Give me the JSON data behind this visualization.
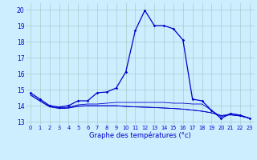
{
  "title": "Graphe des températures (°c)",
  "background_color": "#cceeff",
  "grid_color": "#aacccc",
  "line_color": "#0000cc",
  "xlim": [
    -0.5,
    23.5
  ],
  "ylim": [
    12.8,
    20.4
  ],
  "yticks": [
    13,
    14,
    15,
    16,
    17,
    18,
    19,
    20
  ],
  "xticks": [
    0,
    1,
    2,
    3,
    4,
    5,
    6,
    7,
    8,
    9,
    10,
    11,
    12,
    13,
    14,
    15,
    16,
    17,
    18,
    19,
    20,
    21,
    22,
    23
  ],
  "main_x": [
    0,
    1,
    2,
    3,
    4,
    5,
    6,
    7,
    8,
    9,
    10,
    11,
    12,
    13,
    14,
    15,
    16,
    17,
    18,
    19,
    20,
    21,
    22,
    23
  ],
  "main_y": [
    14.8,
    14.4,
    14.0,
    13.9,
    14.0,
    14.3,
    14.3,
    14.8,
    14.85,
    15.1,
    16.1,
    18.7,
    19.95,
    19.0,
    19.0,
    18.8,
    18.1,
    14.4,
    14.3,
    13.7,
    13.2,
    13.5,
    13.4,
    13.2
  ],
  "line2_x": [
    0,
    1,
    2,
    3,
    4,
    5,
    6,
    7,
    8,
    9,
    10,
    11,
    12,
    13,
    14,
    15,
    16,
    17,
    18,
    19,
    20,
    21,
    22,
    23
  ],
  "line2_y": [
    14.7,
    14.3,
    13.95,
    13.85,
    13.9,
    14.05,
    14.1,
    14.1,
    14.15,
    14.2,
    14.2,
    14.2,
    14.2,
    14.2,
    14.2,
    14.15,
    14.15,
    14.1,
    14.1,
    13.7,
    13.3,
    13.5,
    13.4,
    13.2
  ],
  "line3_x": [
    0,
    1,
    2,
    3,
    4,
    5,
    6,
    7,
    8,
    9,
    10,
    11,
    12,
    13,
    14,
    15,
    16,
    17,
    18,
    19,
    20,
    21,
    22,
    23
  ],
  "line3_y": [
    14.65,
    14.28,
    13.92,
    13.82,
    13.85,
    13.98,
    14.0,
    14.0,
    14.0,
    14.0,
    13.95,
    13.92,
    13.9,
    13.88,
    13.85,
    13.82,
    13.78,
    13.72,
    13.65,
    13.55,
    13.38,
    13.42,
    13.35,
    13.22
  ],
  "line4_x": [
    3,
    4,
    5,
    6,
    7,
    8,
    9,
    10,
    11,
    12,
    13,
    14,
    15,
    16,
    17,
    18,
    19,
    20,
    21,
    22,
    23
  ],
  "line4_y": [
    13.82,
    13.85,
    13.95,
    13.98,
    13.98,
    13.98,
    13.98,
    13.95,
    13.92,
    13.9,
    13.88,
    13.85,
    13.82,
    13.78,
    13.72,
    13.65,
    13.55,
    13.38,
    13.42,
    13.35,
    13.22
  ]
}
